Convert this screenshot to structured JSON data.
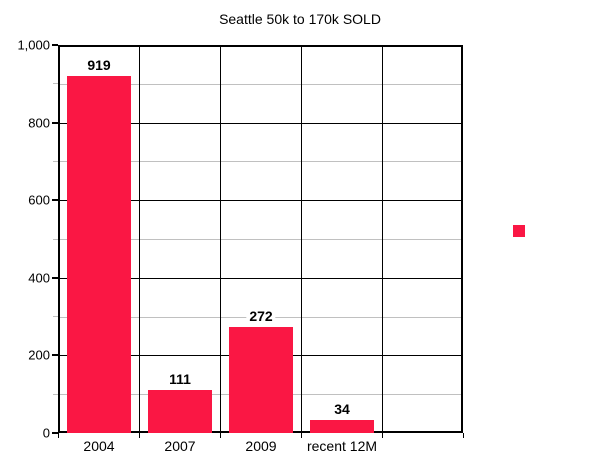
{
  "chart_data": {
    "type": "bar",
    "title": "Seattle 50k to 170k SOLD",
    "categories": [
      "2004",
      "2007",
      "2009",
      "recent 12M"
    ],
    "values": [
      919,
      111,
      272,
      34
    ],
    "data_labels": [
      "919",
      "111",
      "272",
      "34"
    ],
    "xlabel": "",
    "ylabel": "",
    "ylim": [
      0,
      1000
    ],
    "y_major_step": 200,
    "y_minor_step": 100,
    "y_tick_labels": [
      "0",
      "200",
      "400",
      "600",
      "800",
      "1,000"
    ],
    "grid": {
      "horizontal_major": true,
      "horizontal_minor": true,
      "vertical_column_lines": true
    },
    "layout_hints": {
      "empty_trailing_columns": 1,
      "legend_position": "right-middle",
      "data_labels_shown": true
    },
    "legend": {
      "visible": true,
      "label": "",
      "marker": "square"
    },
    "colors": {
      "bar": "#fa1744",
      "major_grid": "#000000",
      "minor_grid": "#c0c0c0",
      "text": "#000000",
      "background": "#ffffff"
    }
  }
}
